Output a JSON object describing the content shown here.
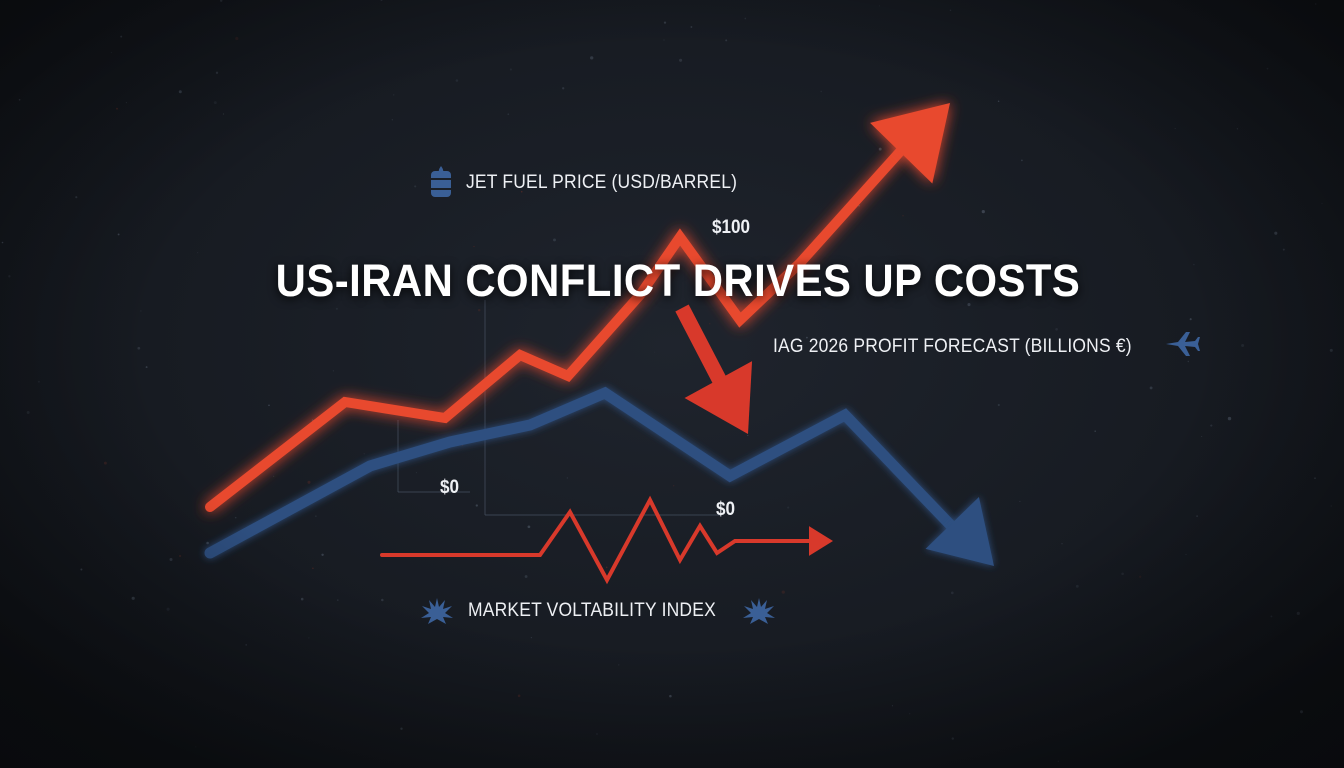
{
  "headline": "US-IRAN CONFLICT DRIVES UP COSTS",
  "colors": {
    "background": "#161a21",
    "fuel": "#e8492e",
    "profit": "#2d4f80",
    "volatility": "#d8392b",
    "text": "#eef0f4",
    "icon": "#3a5f96"
  },
  "icons": {
    "fuel": "oil-barrel-icon",
    "profit": "airplane-icon",
    "volatility_left": "burst-icon",
    "volatility_right": "burst-icon"
  },
  "labels": {
    "fuel_series": "JET FUEL PRICE (USD/BARREL)",
    "profit_series": "IAG 2026 PROFIT FORECAST (BILLIONS €)",
    "volatility_series": "MARKET VOLTABILITY INDEX",
    "tick_fuel_top": "$100",
    "tick_left_zero": "$0",
    "tick_mid_zero": "$0"
  },
  "chart_data": {
    "type": "line",
    "title": "US-IRAN CONFLICT DRIVES UP COSTS",
    "series": [
      {
        "name": "JET FUEL PRICE (USD/BARREL)",
        "trend": "up",
        "values": [
          0,
          30,
          25,
          45,
          40,
          62,
          90,
          55,
          80,
          150
        ]
      },
      {
        "name": "IAG 2026 PROFIT FORECAST (BILLIONS €)",
        "trend": "down",
        "values": [
          5,
          27,
          35,
          42,
          50,
          32,
          50,
          -10
        ]
      },
      {
        "name": "MARKET VOLTABILITY INDEX",
        "trend": "volatile",
        "values": [
          0,
          0,
          0,
          0,
          2,
          -1,
          2,
          0,
          0.8,
          0.2,
          0.6,
          0.5,
          0.5
        ]
      }
    ],
    "yticks": [
      "$100",
      "$0",
      "$0"
    ],
    "grid": false,
    "legend": "none"
  }
}
